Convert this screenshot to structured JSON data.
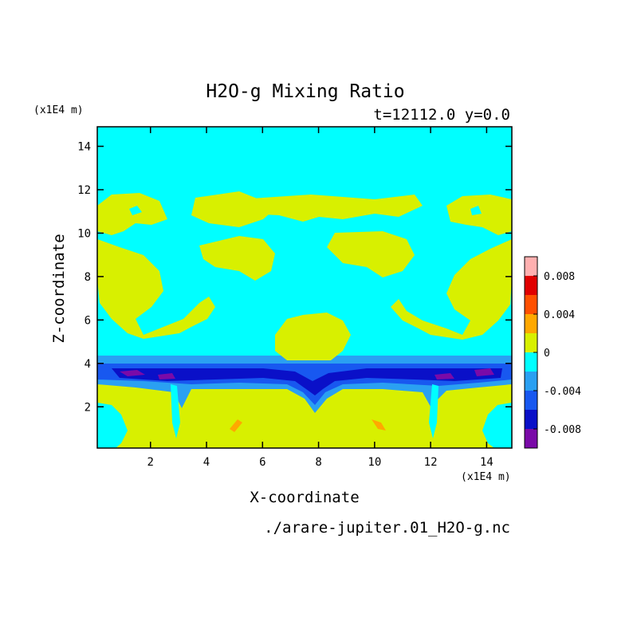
{
  "chart_data": {
    "type": "heatmap",
    "title": "H2O-g Mixing Ratio",
    "subtitle": "t=12112.0 y=0.0",
    "xlabel": "X-coordinate",
    "ylabel": "Z-coordinate",
    "x_unit": "(x1E4 m)",
    "y_unit": "(x1E4 m)",
    "footer": "./arare-jupiter.01_H2O-g.nc",
    "xlim": [
      0.1,
      14.9
    ],
    "ylim": [
      0.1,
      14.9
    ],
    "x_ticks": [
      2,
      4,
      6,
      8,
      10,
      12,
      14
    ],
    "y_ticks": [
      2,
      4,
      6,
      8,
      10,
      12,
      14
    ],
    "colorbar": {
      "levels": [
        -0.01,
        -0.008,
        -0.006,
        -0.004,
        -0.002,
        0.0,
        0.002,
        0.004,
        0.006,
        0.008,
        0.01
      ],
      "colors": [
        "#7a0aa8",
        "#0a10c8",
        "#1858f0",
        "#2aa0f2",
        "#00ffff",
        "#d8f000",
        "#ffa800",
        "#ff5000",
        "#e00000",
        "#ffb0b0"
      ],
      "tick_values": [
        -0.008,
        -0.004,
        0,
        0.004,
        0.008
      ],
      "tick_labels": [
        "-0.008",
        "-0.004",
        "0",
        "0.004",
        "0.008"
      ]
    },
    "fields": {
      "background": {
        "value_range": [
          -0.002,
          0.0
        ],
        "color": "#00ffff"
      },
      "lower_layer": {
        "z_range": [
          0.1,
          3.3
        ],
        "value_range": [
          0.0,
          0.002
        ],
        "color": "#d8f000"
      },
      "upper_clouds": {
        "z_range": [
          5.0,
          11.9
        ],
        "value_range": [
          0.0,
          0.002
        ],
        "color": "#d8f000"
      },
      "depletion_band": {
        "z_range": [
          3.0,
          4.5
        ],
        "min_value": -0.009,
        "color_core": "#7a0aa8"
      },
      "enhanced_spots": {
        "locations": [
          [
            5.1,
            1.1
          ],
          [
            10.1,
            1.1
          ]
        ],
        "value_range": [
          0.002,
          0.004
        ],
        "color": "#ffa800"
      }
    }
  }
}
